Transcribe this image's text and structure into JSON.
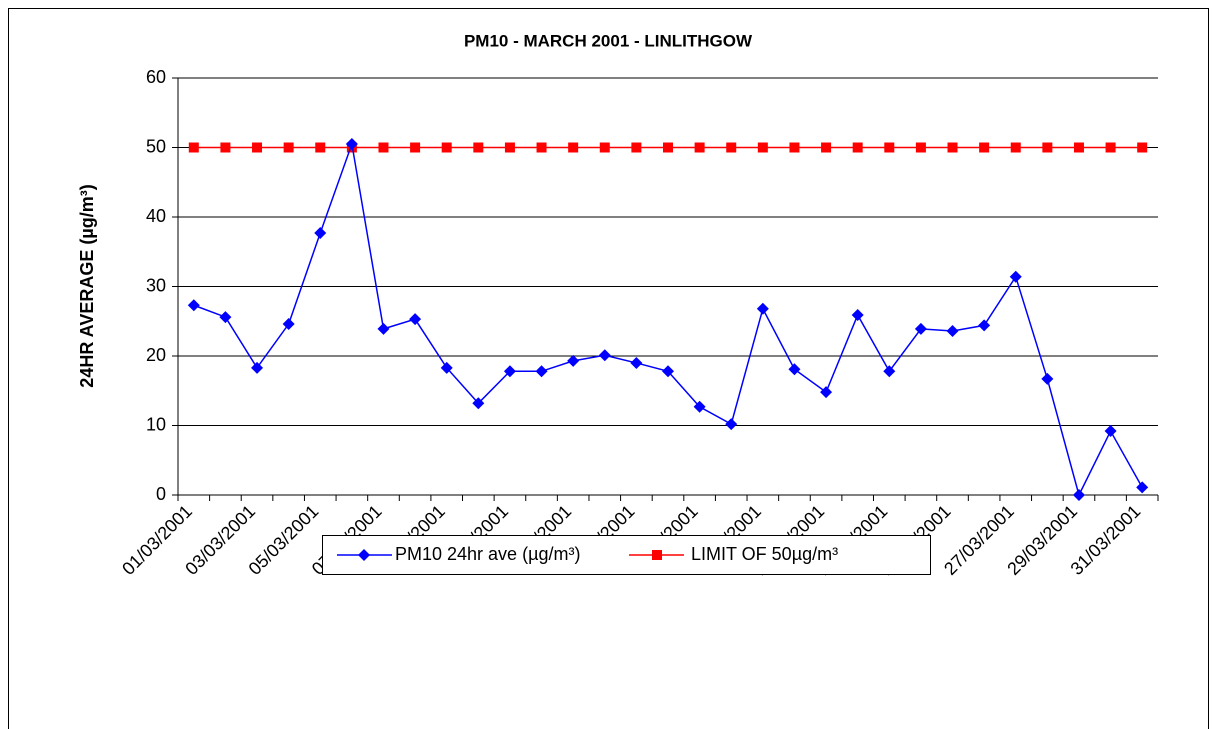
{
  "chart_data": {
    "type": "line",
    "title": "PM10 - MARCH 2001 - LINLITHGOW",
    "y_label": "24HR AVERAGE (µg/m³)",
    "categories": [
      "01/03/2001",
      null,
      "03/03/2001",
      null,
      "05/03/2001",
      null,
      "07/03/2001",
      null,
      "09/03/2001",
      null,
      "11/03/2001",
      null,
      "13/03/2001",
      null,
      "15/03/2001",
      null,
      "17/03/2001",
      null,
      "19/03/2001",
      null,
      "21/03/2001",
      null,
      "23/03/2001",
      null,
      "25/03/2001",
      null,
      "27/03/2001",
      null,
      "29/03/2001",
      null,
      "31/03/2001"
    ],
    "series": [
      {
        "name": "PM10 24hr ave (µg/m³)",
        "color": "#0000ff",
        "marker": "diamond",
        "values": [
          27.3,
          25.6,
          18.3,
          24.6,
          37.7,
          50.5,
          23.9,
          25.3,
          18.3,
          13.2,
          17.8,
          17.8,
          19.3,
          20.1,
          19.0,
          17.8,
          12.7,
          10.2,
          26.8,
          18.1,
          14.8,
          25.9,
          17.8,
          23.9,
          23.6,
          24.4,
          31.4,
          16.7,
          0,
          9.2,
          1.1
        ]
      },
      {
        "name": "LIMIT OF 50µg/m³",
        "color": "#ff0000",
        "marker": "square",
        "values": [
          50,
          50,
          50,
          50,
          50,
          50,
          50,
          50,
          50,
          50,
          50,
          50,
          50,
          50,
          50,
          50,
          50,
          50,
          50,
          50,
          50,
          50,
          50,
          50,
          50,
          50,
          50,
          50,
          50,
          50,
          50
        ]
      }
    ],
    "ylim": [
      0,
      60
    ],
    "yticks": [
      0,
      10,
      20,
      30,
      40,
      50,
      60
    ],
    "grid": true,
    "legend": "bottom"
  }
}
